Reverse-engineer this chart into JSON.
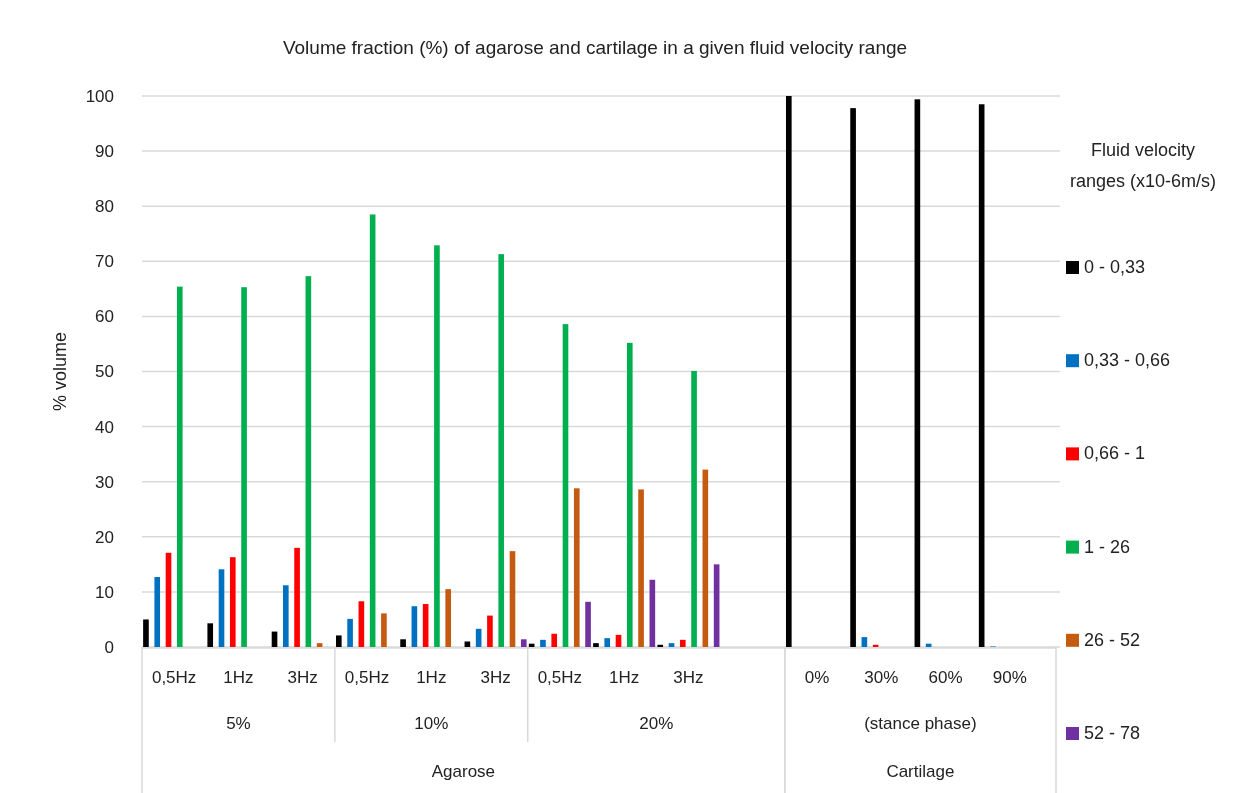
{
  "chart_data": {
    "type": "bar",
    "title": "Volume fraction (%) of agarose and cartilage in a given fluid velocity range",
    "ylabel": "% volume",
    "categories": [
      "0,5Hz",
      "1Hz",
      "3Hz",
      "0,5Hz",
      "1Hz",
      "3Hz",
      "0,5Hz",
      "1Hz",
      "3Hz",
      null,
      "0%",
      "30%",
      "60%",
      "90%"
    ],
    "annotations": [
      "5%",
      "10%",
      "20%",
      "(stance phase)",
      "Agarose",
      "Cartilage"
    ],
    "legend_title": "Fluid velocity ranges (x10-6m/s)",
    "series": [
      {
        "name": "0 - 0,33",
        "color": "#000000",
        "values": [
          5.0,
          4.3,
          2.8,
          2.1,
          1.4,
          1.0,
          0.6,
          0.7,
          0.4,
          null,
          100,
          97.8,
          99.4,
          98.5
        ]
      },
      {
        "name": "0,33 - 0,66",
        "color": "#0070c0",
        "values": [
          12.7,
          14.1,
          11.2,
          5.1,
          7.4,
          3.3,
          1.3,
          1.6,
          0.7,
          null,
          0,
          1.8,
          0.6,
          0.1
        ]
      },
      {
        "name": "0,66 - 1",
        "color": "#ff0000",
        "values": [
          17.1,
          16.3,
          18.0,
          8.3,
          7.8,
          5.7,
          2.4,
          2.2,
          1.3,
          null,
          0,
          0.4,
          0,
          0
        ]
      },
      {
        "name": "1 - 26",
        "color": "#00b050",
        "values": [
          65.4,
          65.3,
          67.3,
          78.5,
          72.9,
          71.3,
          58.6,
          55.2,
          50.1,
          null,
          0,
          0,
          0,
          0
        ]
      },
      {
        "name": "26 - 52",
        "color": "#c55a11",
        "values": [
          0,
          0,
          0.7,
          6.1,
          10.5,
          17.4,
          28.8,
          28.6,
          32.2,
          null,
          0,
          0,
          0,
          0
        ]
      },
      {
        "name": "52 - 78",
        "color": "#7030a0",
        "values": [
          0,
          0,
          0,
          0,
          0,
          1.4,
          8.2,
          12.2,
          15.0,
          null,
          0,
          0,
          0,
          0
        ]
      }
    ],
    "ylim": [
      0,
      100
    ],
    "yticks": [
      0,
      10,
      20,
      30,
      40,
      50,
      60,
      70,
      80,
      90,
      100
    ],
    "grid": "y",
    "legend": "right"
  }
}
